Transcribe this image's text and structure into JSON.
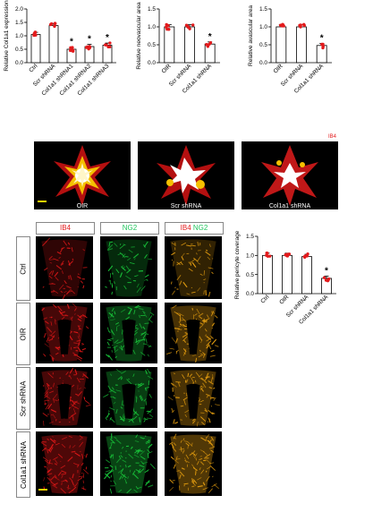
{
  "colors": {
    "red": "#e31a1c",
    "green": "#22c55e",
    "yellow_scale": "#ffd400",
    "bar_fill": "#ffffff",
    "axis": "#000000"
  },
  "chart_data": [
    {
      "type": "bar",
      "ylabel": "Relative Col1a1 expression",
      "categories": [
        "Ctrl",
        "Scr shRNA",
        "Col1a1 shRNA1",
        "Col1a1 shRNA2",
        "Col1a1 shRNA3"
      ],
      "values": [
        1.05,
        1.38,
        0.5,
        0.6,
        0.65
      ],
      "ylim": [
        0,
        2.0
      ],
      "yticks": [
        "0.0",
        "0.5",
        "1.0",
        "1.5",
        "2.0"
      ],
      "significance": [
        "",
        "",
        "*",
        "*",
        "*"
      ],
      "grid": false
    },
    {
      "type": "bar",
      "ylabel": "Relative neovascular area",
      "categories": [
        "OIR",
        "Scr shRNA",
        "Col1a1 shRNA"
      ],
      "values": [
        1.0,
        1.0,
        0.52
      ],
      "ylim": [
        0,
        1.5
      ],
      "yticks": [
        "0.0",
        "0.5",
        "1.0",
        "1.5"
      ],
      "significance": [
        "",
        "",
        "*"
      ],
      "grid": false
    },
    {
      "type": "bar",
      "ylabel": "Relative avascular area",
      "categories": [
        "OIR",
        "Scr shRNA",
        "Col1a1 shRNA"
      ],
      "values": [
        1.0,
        1.0,
        0.48
      ],
      "ylim": [
        0,
        1.5
      ],
      "yticks": [
        "0.0",
        "0.5",
        "1.0",
        "1.5"
      ],
      "significance": [
        "",
        "",
        "*"
      ],
      "grid": false
    },
    {
      "type": "bar",
      "ylabel": "Relative pericyte coverage",
      "categories": [
        "Ctrl",
        "OIR",
        "Scr shRNA",
        "Col1a1 shRNA"
      ],
      "values": [
        1.0,
        1.0,
        0.97,
        0.4
      ],
      "ylim": [
        0,
        1.5
      ],
      "yticks": [
        "0.0",
        "0.5",
        "1.0",
        "1.5"
      ],
      "significance": [
        "",
        "",
        "",
        "*"
      ],
      "grid": false
    }
  ],
  "flatmounts": {
    "stain_label": "IB4",
    "captions": [
      "OIR",
      "Scr shRNA",
      "Col1a1 shRNA"
    ]
  },
  "grid": {
    "col_headers": [
      {
        "parts": [
          "IB4"
        ]
      },
      {
        "parts": [
          "NG2"
        ]
      },
      {
        "parts": [
          "IB4",
          "NG2"
        ]
      }
    ],
    "row_labels": [
      "Ctrl",
      "OIR",
      "Scr shRNA",
      "Col1a1 shRNA"
    ]
  }
}
